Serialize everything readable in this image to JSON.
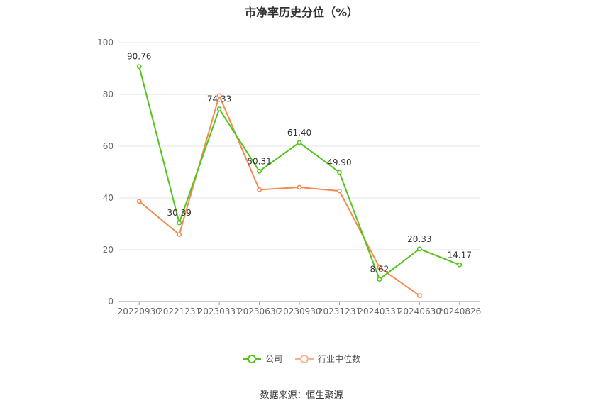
{
  "chart_data": {
    "type": "line",
    "title": "市净率历史分位（%）",
    "categories": [
      "20220930",
      "20221231",
      "20230331",
      "20230630",
      "20230930",
      "20231231",
      "20240331",
      "20240630",
      "20240826"
    ],
    "ylim": [
      0,
      100
    ],
    "yticks": [
      0,
      20,
      40,
      60,
      80,
      100
    ],
    "grid": true,
    "legend_position": "bottom",
    "series": [
      {
        "name": "公司",
        "color": "#52c41a",
        "values": [
          90.76,
          30.39,
          74.33,
          50.31,
          61.4,
          49.9,
          8.62,
          20.33,
          14.17
        ],
        "labels": [
          "90.76",
          "30.39",
          "74.33",
          "50.31",
          "61.40",
          "49.90",
          "8.62",
          "20.33",
          "14.17"
        ]
      },
      {
        "name": "行业中位数",
        "color": "#f5894f",
        "values": [
          38.7,
          25.9,
          79.5,
          43.2,
          44.1,
          42.7,
          13.2,
          2.3,
          null
        ]
      }
    ]
  },
  "legend": {
    "company": "公司",
    "industry": "行业中位数"
  },
  "footer": {
    "source": "数据来源：恒生聚源"
  }
}
